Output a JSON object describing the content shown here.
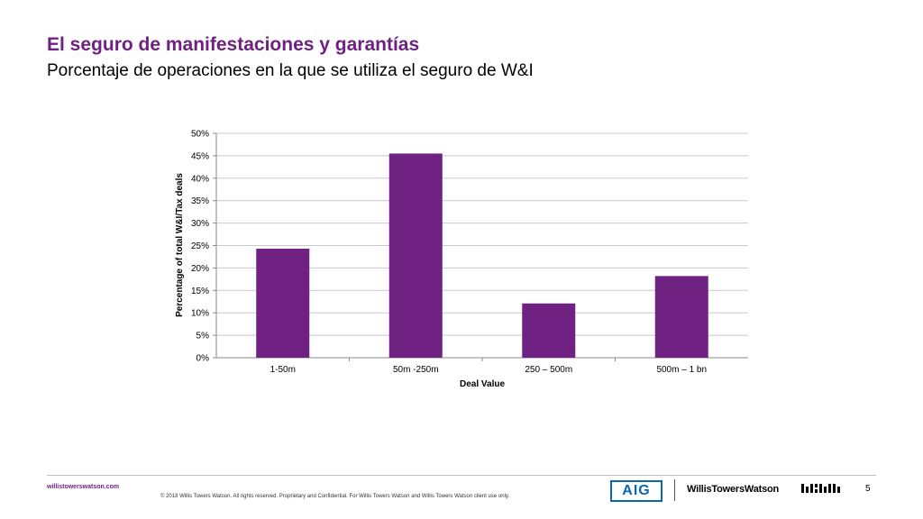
{
  "header": {
    "title": "El seguro de manifestaciones y garantías",
    "subtitle": "Porcentaje de operaciones en la que se utiliza el seguro de W&I"
  },
  "chart_data": {
    "type": "bar",
    "categories": [
      "1-50m",
      "50m -250m",
      "250 – 500m",
      "500m – 1 bn"
    ],
    "values": [
      24.3,
      45.5,
      12.1,
      18.2
    ],
    "title": "",
    "xlabel": "Deal Value",
    "ylabel": "Percentage of total W&I/Tax  deals",
    "ylim": [
      0,
      50
    ],
    "yticks": [
      "0%",
      "5%",
      "10%",
      "15%",
      "20%",
      "25%",
      "30%",
      "35%",
      "40%",
      "45%",
      "50%"
    ],
    "grid": true,
    "legend": "none",
    "bar_color": "#6f2282"
  },
  "footer": {
    "url": "willistowerswatson.com",
    "copyright": "© 2018 Willis Towers Watson. All rights reserved. Proprietary and Confidential. For Willis Towers Watson and Willis Towers Watson client use only.",
    "aig_logo": "AIG",
    "wtw_logo": "WillisTowersWatson",
    "page_number": "5"
  },
  "colors": {
    "brand_purple": "#702082",
    "aig_blue": "#0a68b0"
  }
}
